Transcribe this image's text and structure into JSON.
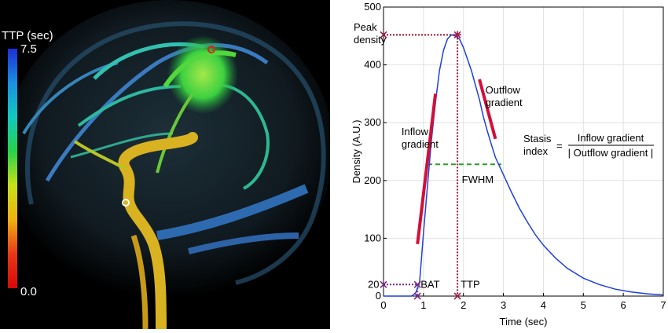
{
  "left_panel": {
    "colorbar": {
      "title": "TTP (sec)",
      "max_label": "7.5",
      "min_label": "0.0",
      "stops": [
        "#1c2fd6",
        "#1a8fe0",
        "#12c8c0",
        "#27d24a",
        "#c8e018",
        "#f0b010",
        "#e83818",
        "#d80808"
      ]
    },
    "image_description_colors": {
      "vessel_green": "#3bd34a",
      "vessel_yellow": "#e0c22a",
      "vessel_blue": "#2f6fb6",
      "roi_red": "#e02020",
      "roi_white": "#ffffff"
    }
  },
  "chart_data": {
    "type": "line",
    "xlabel": "Time (sec)",
    "ylabel": "Density (A.U.)",
    "xlim": [
      0,
      7
    ],
    "ylim": [
      0,
      500
    ],
    "xticks": [
      0,
      1,
      2,
      3,
      4,
      5,
      6,
      7
    ],
    "yticks": [
      0,
      100,
      200,
      300,
      400,
      500
    ],
    "grid": true,
    "series": [
      {
        "color": "#1f3fd8",
        "x": [
          0,
          0.7,
          0.8,
          0.9,
          1.0,
          1.1,
          1.2,
          1.3,
          1.4,
          1.5,
          1.6,
          1.7,
          1.8,
          1.9,
          2.0,
          2.1,
          2.2,
          2.3,
          2.4,
          2.5,
          2.6,
          2.7,
          2.8,
          2.9,
          3.0,
          3.2,
          3.4,
          3.6,
          3.8,
          4.0,
          4.3,
          4.6,
          5.0,
          5.4,
          5.8,
          6.2,
          6.6,
          7.0
        ],
        "y": [
          0,
          0,
          5,
          22,
          110,
          190,
          270,
          335,
          390,
          425,
          445,
          452,
          450,
          445,
          430,
          410,
          390,
          365,
          340,
          310,
          285,
          262,
          240,
          225,
          210,
          180,
          152,
          128,
          106,
          88,
          66,
          48,
          31,
          20,
          12,
          7,
          4,
          2
        ]
      }
    ],
    "annotations": {
      "peak_density": {
        "label": "Peak\ndensity",
        "x": 1.85,
        "y": 452
      },
      "bat": {
        "label": "BAT",
        "x": 0.85,
        "y": 20
      },
      "ttp": {
        "label": "TTP",
        "x": 1.85
      },
      "baseline_label": "20",
      "fwhm": {
        "label": "FWHM",
        "x_start": 1.1,
        "x_end": 2.95,
        "y": 228
      },
      "inflow_gradient": {
        "label": "Inflow\ngradient",
        "x_start": 0.85,
        "y_start": 90,
        "x_end": 1.3,
        "y_end": 350
      },
      "outflow_gradient": {
        "label": "Outflow\ngradient",
        "x_start": 2.4,
        "y_start": 375,
        "x_end": 2.8,
        "y_end": 272
      },
      "stasis_index": {
        "label_left": "Stasis\nindex",
        "equals": "=",
        "numerator": "Inflow gradient",
        "denominator": "| Outflow gradient |"
      }
    },
    "colors": {
      "curve": "#1f3fd8",
      "gradient_lines": "#d0103a",
      "dotted": "#a0102a",
      "fwhm": "#2a9a2a",
      "marker": "#a0204a"
    }
  }
}
